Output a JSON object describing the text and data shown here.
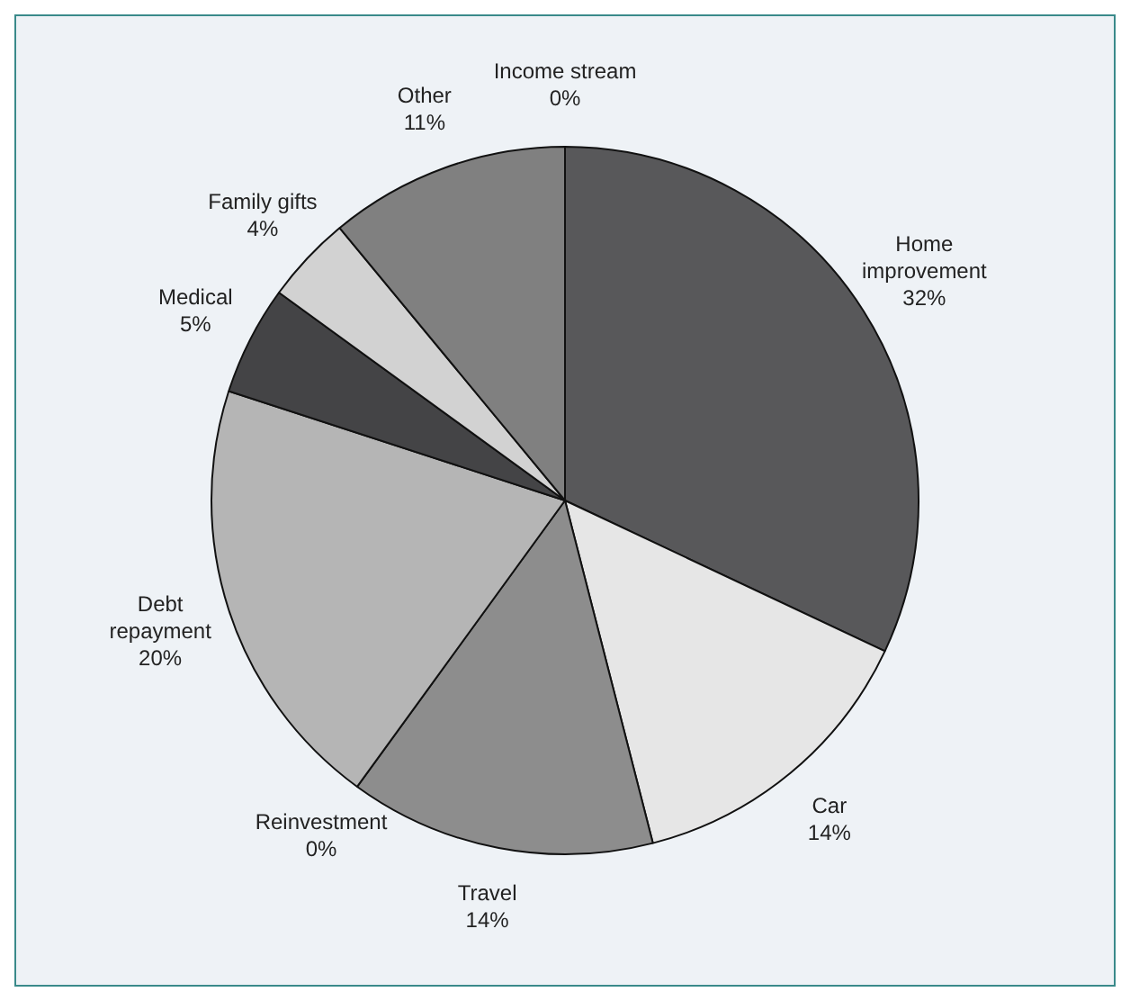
{
  "chart_data": {
    "type": "pie",
    "categories": [
      "Income stream",
      "Home improvement",
      "Car",
      "Travel",
      "Reinvestment",
      "Debt repayment",
      "Medical",
      "Family gifts",
      "Other"
    ],
    "values": [
      0,
      32,
      14,
      14,
      0,
      20,
      5,
      4,
      11
    ],
    "colors": [
      "#6e6e6e",
      "#58585a",
      "#e6e6e6",
      "#8d8d8d",
      "#6e6e6e",
      "#b5b5b5",
      "#444446",
      "#d2d2d2",
      "#808080"
    ],
    "value_labels": [
      "0%",
      "32%",
      "14%",
      "14%",
      "0%",
      "20%",
      "5%",
      "4%",
      "11%"
    ],
    "legend": false
  }
}
